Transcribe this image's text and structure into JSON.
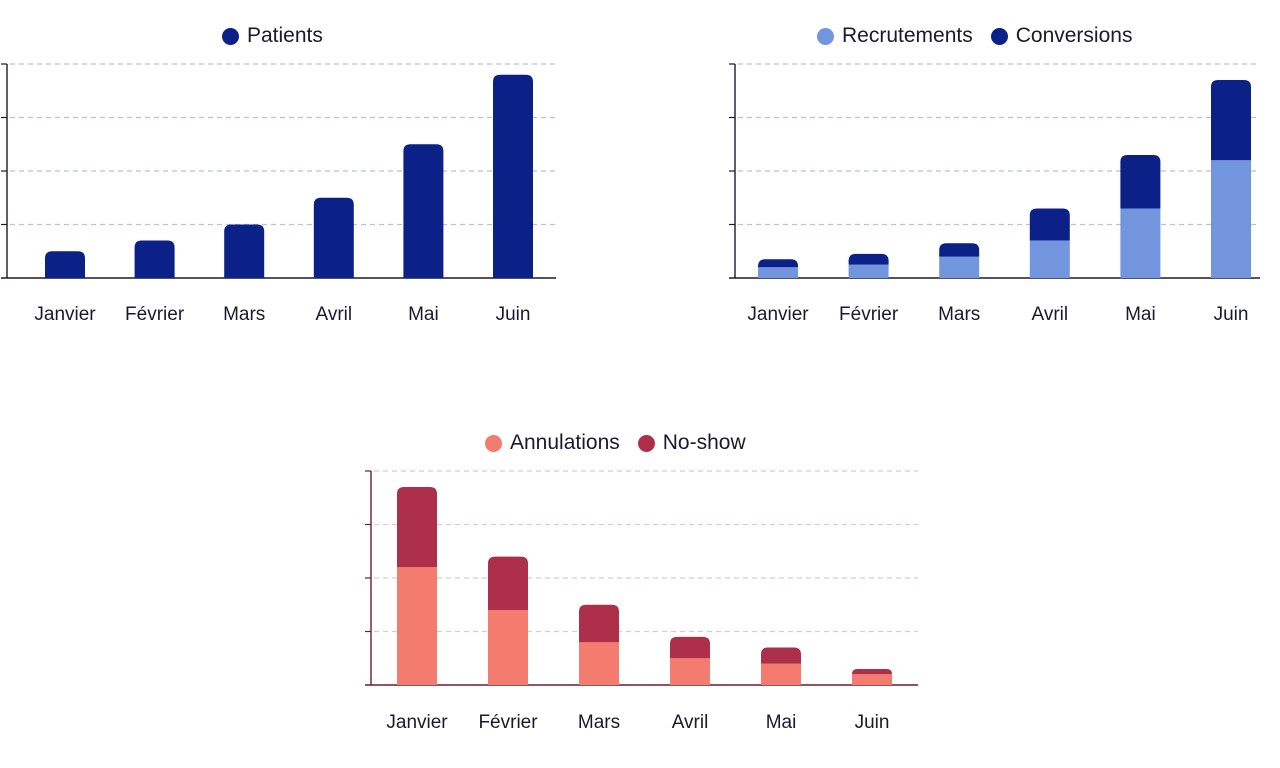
{
  "chart_data": [
    {
      "id": "patients",
      "type": "bar",
      "stacked": false,
      "categories": [
        "Janvier",
        "Février",
        "Mars",
        "Avril",
        "Mai",
        "Juin"
      ],
      "series": [
        {
          "name": "Patients",
          "color": "#0b2188",
          "values": [
            0.5,
            0.7,
            1.0,
            1.5,
            2.5,
            3.8
          ]
        }
      ],
      "ylim": [
        0,
        4
      ],
      "gridlines": [
        1,
        2,
        3,
        4
      ],
      "grid_color": "#b9bfe0",
      "axis_color": "#1a1a2e",
      "legend_position": "top-center"
    },
    {
      "id": "recrutements",
      "type": "bar",
      "stacked": true,
      "categories": [
        "Janvier",
        "Février",
        "Mars",
        "Avril",
        "Mai",
        "Juin"
      ],
      "series": [
        {
          "name": "Recrutements",
          "color": "#7395de",
          "values": [
            0.2,
            0.25,
            0.4,
            0.7,
            1.3,
            2.2
          ]
        },
        {
          "name": "Conversions",
          "color": "#0b2188",
          "values": [
            0.15,
            0.2,
            0.25,
            0.6,
            1.0,
            1.5
          ]
        }
      ],
      "ylim": [
        0,
        4
      ],
      "gridlines": [
        1,
        2,
        3,
        4
      ],
      "grid_color": "#b9bfe0",
      "axis_color": "#1a1a2e",
      "legend_position": "top-right"
    },
    {
      "id": "annulations",
      "type": "bar",
      "stacked": true,
      "categories": [
        "Janvier",
        "Février",
        "Mars",
        "Avril",
        "Mai",
        "Juin"
      ],
      "series": [
        {
          "name": "Annulations",
          "color": "#f47c6e",
          "values": [
            2.2,
            1.4,
            0.8,
            0.5,
            0.4,
            0.2
          ]
        },
        {
          "name": "No-show",
          "color": "#ad2f4a",
          "values": [
            1.5,
            1.0,
            0.7,
            0.4,
            0.3,
            0.1
          ]
        }
      ],
      "ylim": [
        0,
        4
      ],
      "gridlines": [
        1,
        2,
        3,
        4
      ],
      "grid_color": "#e8c3ca",
      "axis_color": "#6b1d2c",
      "legend_position": "top-center"
    }
  ]
}
